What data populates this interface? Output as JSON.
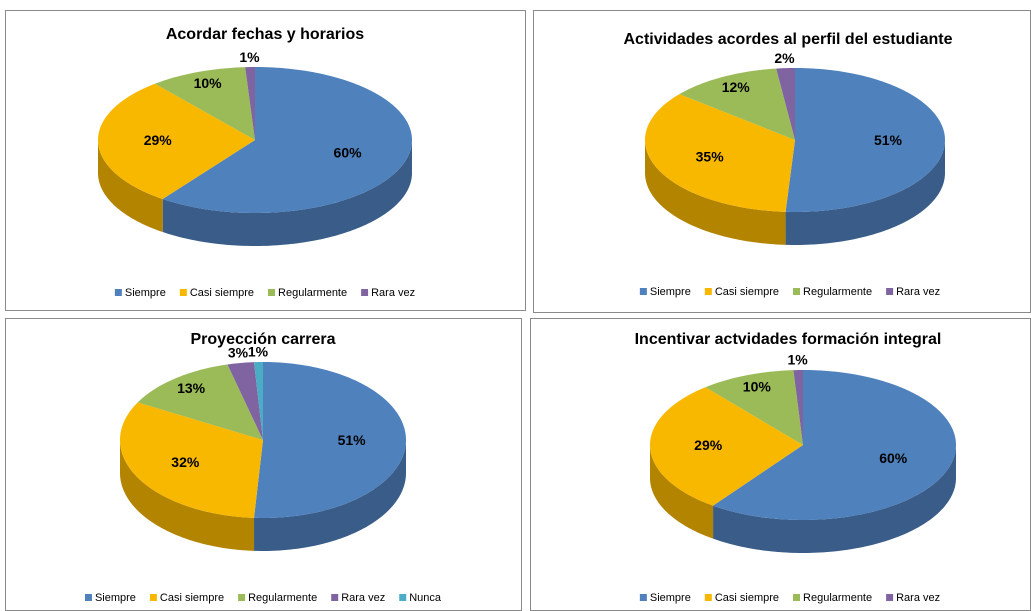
{
  "chart_data": [
    {
      "type": "pie",
      "title": "Acordar fechas y horarios",
      "categories": [
        "Siempre",
        "Casi siempre",
        "Regularmente",
        "Rara vez"
      ],
      "values": [
        60,
        29,
        10,
        1
      ],
      "value_labels": [
        "60%",
        "29%",
        "10%",
        "1%"
      ],
      "colors": [
        "#4f81bd",
        "#f9b800",
        "#9bbb59",
        "#8064a2"
      ]
    },
    {
      "type": "pie",
      "title": "Actividades acordes al perfil del estudiante",
      "categories": [
        "Siempre",
        "Casi siempre",
        "Regularmente",
        "Rara vez"
      ],
      "values": [
        51,
        35,
        12,
        2
      ],
      "value_labels": [
        "51%",
        "35%",
        "12%",
        "2%"
      ],
      "colors": [
        "#4f81bd",
        "#f9b800",
        "#9bbb59",
        "#8064a2"
      ]
    },
    {
      "type": "pie",
      "title": "Proyección carrera",
      "categories": [
        "Siempre",
        "Casi siempre",
        "Regularmente",
        "Rara vez",
        "Nunca"
      ],
      "values": [
        51,
        32,
        13,
        3,
        1
      ],
      "value_labels": [
        "51%",
        "32%",
        "13%",
        "3%",
        "1%"
      ],
      "colors": [
        "#4f81bd",
        "#f9b800",
        "#9bbb59",
        "#8064a2",
        "#4bacc6"
      ]
    },
    {
      "type": "pie",
      "title": "Incentivar actvidades formación integral",
      "categories": [
        "Siempre",
        "Casi siempre",
        "Regularmente",
        "Rara vez"
      ],
      "values": [
        60,
        29,
        10,
        1
      ],
      "value_labels": [
        "60%",
        "29%",
        "10%",
        "1%"
      ],
      "colors": [
        "#4f81bd",
        "#f9b800",
        "#9bbb59",
        "#8064a2"
      ]
    }
  ]
}
